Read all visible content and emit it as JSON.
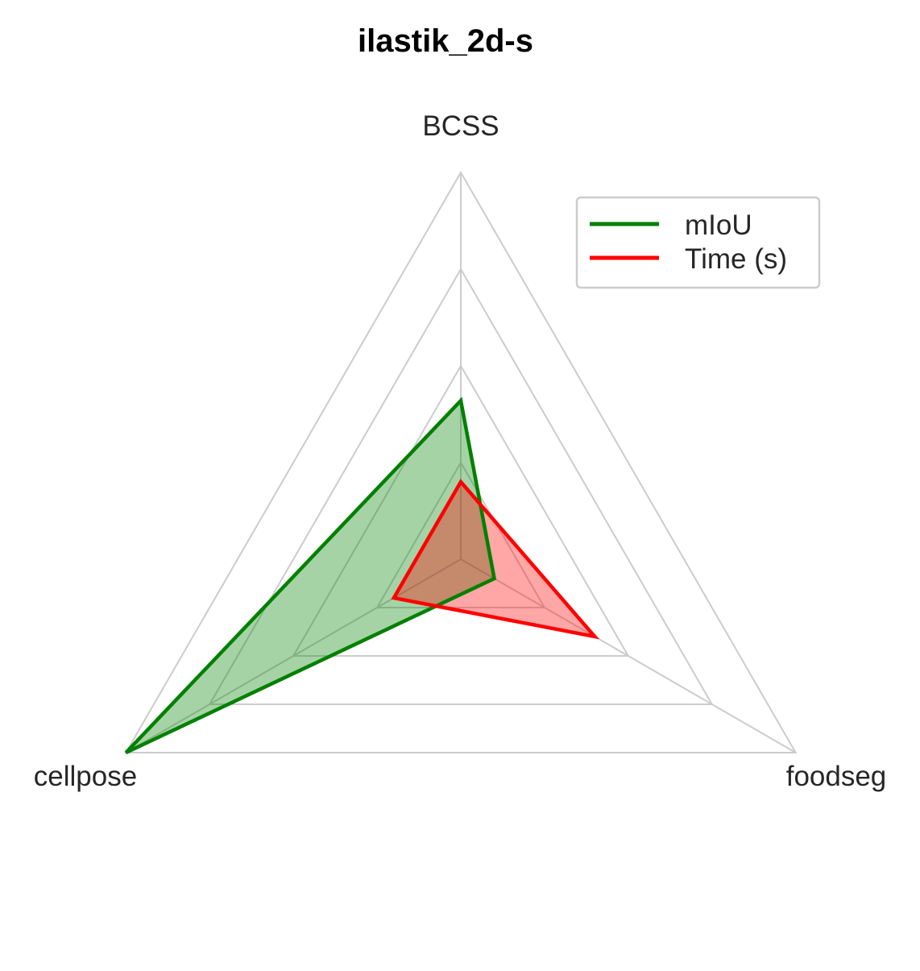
{
  "chart_data": {
    "type": "radar",
    "title": "ilastik_2d-s",
    "axes": [
      "BCSS",
      "cellpose",
      "foodseg"
    ],
    "rlim": [
      0,
      1
    ],
    "grid_levels": [
      0.25,
      0.5,
      0.75,
      1.0
    ],
    "grid": true,
    "legend_position": "top-right",
    "series": [
      {
        "name": "mIoU",
        "values": [
          0.41,
          1.0,
          0.1
        ],
        "color": "#008000",
        "fill": "#008000",
        "fill_opacity": 0.35
      },
      {
        "name": "Time (s)",
        "values": [
          0.2,
          0.2,
          0.4
        ],
        "color": "#ff0000",
        "fill": "#ff0000",
        "fill_opacity": 0.35
      }
    ],
    "grid_color": "#cccccc"
  }
}
